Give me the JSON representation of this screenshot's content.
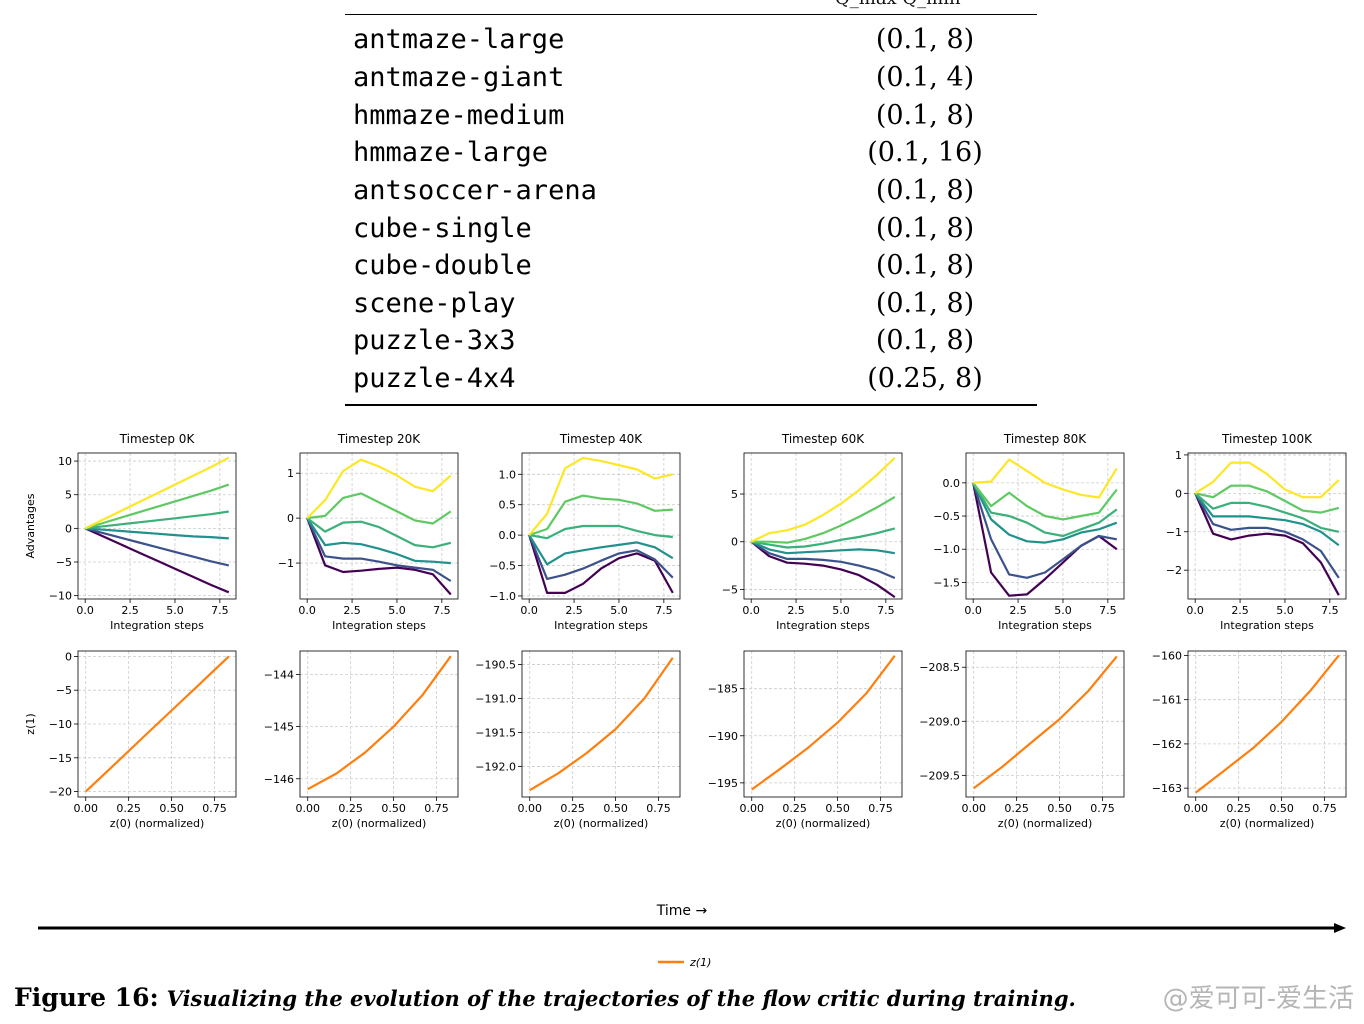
{
  "table": {
    "header_cut": "Q_max   Q_min",
    "rows": [
      {
        "env": "antmaze-large",
        "value": "(0.1, 8)"
      },
      {
        "env": "antmaze-giant",
        "value": "(0.1, 4)"
      },
      {
        "env": "hmmaze-medium",
        "value": "(0.1, 8)"
      },
      {
        "env": "hmmaze-large",
        "value": "(0.1, 16)"
      },
      {
        "env": "antsoccer-arena",
        "value": "(0.1, 8)"
      },
      {
        "env": "cube-single",
        "value": "(0.1, 8)"
      },
      {
        "env": "cube-double",
        "value": "(0.1, 8)"
      },
      {
        "env": "scene-play",
        "value": "(0.1, 8)"
      },
      {
        "env": "puzzle-3x3",
        "value": "(0.1, 8)"
      },
      {
        "env": "puzzle-4x4",
        "value": "(0.25, 8)"
      }
    ]
  },
  "colors": {
    "viridis": [
      "#440154",
      "#3b528b",
      "#21918c",
      "#5ec962",
      "#fde725"
    ],
    "z1": "#ff7f0e",
    "grid": "#cccccc"
  },
  "chart_data": [
    {
      "type": "line",
      "title": "Timestep 0K",
      "xlabel": "Integration steps",
      "ylabel": "Advantages",
      "xlim": [
        -0.4,
        8.4
      ],
      "ylim": [
        -10.5,
        11.2
      ],
      "xticks": [
        "0.0",
        "2.5",
        "5.0",
        "7.5"
      ],
      "xtick_values": [
        0,
        2.5,
        5,
        7.5
      ],
      "yticks": [
        "10",
        "5",
        "0",
        "−5",
        "−10"
      ],
      "ytick_values": [
        10,
        5,
        0,
        -5,
        -10
      ],
      "x": [
        0,
        1,
        2,
        3,
        4,
        5,
        6,
        7,
        8
      ],
      "series": [
        {
          "values": [
            0,
            -1.2,
            -2.4,
            -3.6,
            -4.8,
            -6.0,
            -7.2,
            -8.4,
            -9.5
          ]
        },
        {
          "values": [
            0,
            -0.7,
            -1.4,
            -2.1,
            -2.8,
            -3.5,
            -4.2,
            -4.9,
            -5.5
          ]
        },
        {
          "values": [
            0,
            -0.2,
            -0.4,
            -0.6,
            -0.8,
            -1.0,
            -1.2,
            -1.3,
            -1.5
          ]
        },
        {
          "values": [
            0,
            0.3,
            0.6,
            0.9,
            1.2,
            1.5,
            1.8,
            2.1,
            2.5
          ]
        },
        {
          "values": [
            0,
            0.8,
            1.6,
            2.4,
            3.2,
            4.0,
            4.8,
            5.6,
            6.5
          ]
        },
        {
          "values": [
            0,
            1.3,
            2.6,
            3.9,
            5.2,
            6.5,
            7.8,
            9.1,
            10.5
          ]
        }
      ]
    },
    {
      "type": "line",
      "title": "Timestep 20K",
      "xlabel": "Integration steps",
      "ylabel": "",
      "xlim": [
        -0.4,
        8.4
      ],
      "ylim": [
        -1.8,
        1.45
      ],
      "xticks": [
        "0.0",
        "2.5",
        "5.0",
        "7.5"
      ],
      "xtick_values": [
        0,
        2.5,
        5,
        7.5
      ],
      "yticks": [
        "1",
        "0",
        "−1"
      ],
      "ytick_values": [
        1,
        0,
        -1
      ],
      "x": [
        0,
        1,
        2,
        3,
        4,
        5,
        6,
        7,
        8
      ],
      "series": [
        {
          "values": [
            0,
            -1.05,
            -1.2,
            -1.17,
            -1.13,
            -1.1,
            -1.15,
            -1.25,
            -1.7
          ]
        },
        {
          "values": [
            0,
            -0.85,
            -0.9,
            -0.9,
            -0.97,
            -1.05,
            -1.1,
            -1.15,
            -1.4
          ]
        },
        {
          "values": [
            0,
            -0.6,
            -0.55,
            -0.58,
            -0.68,
            -0.8,
            -0.95,
            -0.97,
            -1.0
          ]
        },
        {
          "values": [
            0,
            -0.3,
            -0.1,
            -0.08,
            -0.2,
            -0.4,
            -0.6,
            -0.65,
            -0.55
          ]
        },
        {
          "values": [
            0,
            0.05,
            0.45,
            0.55,
            0.35,
            0.15,
            -0.05,
            -0.12,
            0.15
          ]
        },
        {
          "values": [
            0,
            0.4,
            1.05,
            1.3,
            1.15,
            0.95,
            0.7,
            0.6,
            0.95
          ]
        }
      ]
    },
    {
      "type": "line",
      "title": "Timestep 40K",
      "xlabel": "Integration steps",
      "ylabel": "",
      "xlim": [
        -0.4,
        8.4
      ],
      "ylim": [
        -1.05,
        1.35
      ],
      "xticks": [
        "0.0",
        "2.5",
        "5.0",
        "7.5"
      ],
      "xtick_values": [
        0,
        2.5,
        5,
        7.5
      ],
      "yticks": [
        "1.0",
        "0.5",
        "0.0",
        "−0.5",
        "−1.0"
      ],
      "ytick_values": [
        1.0,
        0.5,
        0.0,
        -0.5,
        -1.0
      ],
      "x": [
        0,
        1,
        2,
        3,
        4,
        5,
        6,
        7,
        8
      ],
      "series": [
        {
          "values": [
            0,
            -0.95,
            -0.95,
            -0.8,
            -0.55,
            -0.38,
            -0.3,
            -0.42,
            -0.95
          ]
        },
        {
          "values": [
            0,
            -0.72,
            -0.65,
            -0.55,
            -0.42,
            -0.3,
            -0.25,
            -0.4,
            -0.7
          ]
        },
        {
          "values": [
            0,
            -0.48,
            -0.3,
            -0.25,
            -0.2,
            -0.16,
            -0.12,
            -0.2,
            -0.38
          ]
        },
        {
          "values": [
            0,
            -0.05,
            0.1,
            0.15,
            0.15,
            0.15,
            0.07,
            0.0,
            -0.03
          ]
        },
        {
          "values": [
            0,
            0.1,
            0.55,
            0.65,
            0.6,
            0.58,
            0.52,
            0.4,
            0.42
          ]
        },
        {
          "values": [
            0,
            0.35,
            1.1,
            1.27,
            1.22,
            1.15,
            1.08,
            0.93,
            1.0
          ]
        }
      ]
    },
    {
      "type": "line",
      "title": "Timestep 60K",
      "xlabel": "Integration steps",
      "ylabel": "",
      "xlim": [
        -0.4,
        8.4
      ],
      "ylim": [
        -6.0,
        9.3
      ],
      "xticks": [
        "0.0",
        "2.5",
        "5.0",
        "7.5"
      ],
      "xtick_values": [
        0,
        2.5,
        5,
        7.5
      ],
      "yticks": [
        "5",
        "0",
        "−5"
      ],
      "ytick_values": [
        5,
        0,
        -5
      ],
      "x": [
        0,
        1,
        2,
        3,
        4,
        5,
        6,
        7,
        8
      ],
      "series": [
        {
          "values": [
            0,
            -1.5,
            -2.2,
            -2.3,
            -2.5,
            -2.9,
            -3.5,
            -4.5,
            -5.8
          ]
        },
        {
          "values": [
            0,
            -1.2,
            -1.8,
            -1.8,
            -1.9,
            -2.1,
            -2.5,
            -3.0,
            -3.8
          ]
        },
        {
          "values": [
            0,
            -0.8,
            -1.2,
            -1.1,
            -1.0,
            -0.9,
            -0.8,
            -0.9,
            -1.2
          ]
        },
        {
          "values": [
            0,
            -0.3,
            -0.6,
            -0.5,
            -0.2,
            0.2,
            0.5,
            0.9,
            1.4
          ]
        },
        {
          "values": [
            0,
            0.0,
            -0.1,
            0.3,
            0.9,
            1.7,
            2.6,
            3.6,
            4.7
          ]
        },
        {
          "values": [
            0,
            0.9,
            1.2,
            1.8,
            2.8,
            4.0,
            5.4,
            7.0,
            8.8
          ]
        }
      ]
    },
    {
      "type": "line",
      "title": "Timestep 80K",
      "xlabel": "Integration steps",
      "ylabel": "",
      "xlim": [
        -0.4,
        8.4
      ],
      "ylim": [
        -1.75,
        0.45
      ],
      "xticks": [
        "0.0",
        "2.5",
        "5.0",
        "7.5"
      ],
      "xtick_values": [
        0,
        2.5,
        5,
        7.5
      ],
      "yticks": [
        "0.0",
        "−0.5",
        "−1.0",
        "−1.5"
      ],
      "ytick_values": [
        0.0,
        -0.5,
        -1.0,
        -1.5
      ],
      "x": [
        0,
        1,
        2,
        3,
        4,
        5,
        6,
        7,
        8
      ],
      "series": [
        {
          "values": [
            0,
            -1.35,
            -1.7,
            -1.68,
            -1.45,
            -1.2,
            -0.95,
            -0.8,
            -1.0
          ]
        },
        {
          "values": [
            0,
            -0.85,
            -1.38,
            -1.43,
            -1.35,
            -1.15,
            -0.95,
            -0.8,
            -0.85
          ]
        },
        {
          "values": [
            0,
            -0.55,
            -0.78,
            -0.88,
            -0.9,
            -0.85,
            -0.75,
            -0.7,
            -0.6
          ]
        },
        {
          "values": [
            0,
            -0.45,
            -0.5,
            -0.6,
            -0.75,
            -0.8,
            -0.7,
            -0.6,
            -0.4
          ]
        },
        {
          "values": [
            0,
            -0.35,
            -0.15,
            -0.35,
            -0.5,
            -0.55,
            -0.5,
            -0.45,
            -0.1
          ]
        },
        {
          "values": [
            0,
            0.02,
            0.35,
            0.18,
            0.0,
            -0.1,
            -0.18,
            -0.22,
            0.22
          ]
        }
      ]
    },
    {
      "type": "line",
      "title": "Timestep 100K",
      "xlabel": "Integration steps",
      "ylabel": "",
      "xlim": [
        -0.4,
        8.4
      ],
      "ylim": [
        -2.75,
        1.05
      ],
      "xticks": [
        "0.0",
        "2.5",
        "5.0",
        "7.5"
      ],
      "xtick_values": [
        0,
        2.5,
        5,
        7.5
      ],
      "yticks": [
        "1",
        "0",
        "−1",
        "−2"
      ],
      "ytick_values": [
        1,
        0,
        -1,
        -2
      ],
      "x": [
        0,
        1,
        2,
        3,
        4,
        5,
        6,
        7,
        8
      ],
      "series": [
        {
          "values": [
            0,
            -1.05,
            -1.2,
            -1.1,
            -1.05,
            -1.1,
            -1.3,
            -1.8,
            -2.65
          ]
        },
        {
          "values": [
            0,
            -0.8,
            -0.95,
            -0.9,
            -0.9,
            -1.0,
            -1.2,
            -1.5,
            -2.2
          ]
        },
        {
          "values": [
            0,
            -0.6,
            -0.6,
            -0.6,
            -0.65,
            -0.7,
            -0.8,
            -1.0,
            -1.35
          ]
        },
        {
          "values": [
            0,
            -0.4,
            -0.25,
            -0.25,
            -0.35,
            -0.5,
            -0.65,
            -0.9,
            -1.0
          ]
        },
        {
          "values": [
            0,
            -0.1,
            0.2,
            0.2,
            0.05,
            -0.2,
            -0.45,
            -0.5,
            -0.38
          ]
        },
        {
          "values": [
            0,
            0.3,
            0.8,
            0.8,
            0.5,
            0.1,
            -0.1,
            -0.1,
            0.35
          ]
        }
      ]
    },
    {
      "type": "line",
      "title": "",
      "xlabel": "z(0) (normalized)",
      "ylabel": "z(1)",
      "xlim": [
        -0.045,
        0.875
      ],
      "ylim": [
        -20.8,
        0.8
      ],
      "xticks": [
        "0.00",
        "0.25",
        "0.50",
        "0.75"
      ],
      "xtick_values": [
        0,
        0.25,
        0.5,
        0.75
      ],
      "yticks": [
        "0",
        "−5",
        "−10",
        "−15",
        "−20"
      ],
      "ytick_values": [
        0,
        -5,
        -10,
        -15,
        -20
      ],
      "x": [
        0,
        0.167,
        0.333,
        0.5,
        0.667,
        0.833
      ],
      "series": [
        {
          "name": "z(1)",
          "values": [
            -20,
            -16,
            -12,
            -8,
            -4,
            0
          ]
        }
      ]
    },
    {
      "type": "line",
      "title": "",
      "xlabel": "z(0) (normalized)",
      "ylabel": "",
      "xlim": [
        -0.045,
        0.875
      ],
      "ylim": [
        -146.35,
        -143.55
      ],
      "xticks": [
        "0.00",
        "0.25",
        "0.50",
        "0.75"
      ],
      "xtick_values": [
        0,
        0.25,
        0.5,
        0.75
      ],
      "yticks": [
        "−144",
        "−145",
        "−146"
      ],
      "ytick_values": [
        -144,
        -145,
        -146
      ],
      "x": [
        0,
        0.167,
        0.333,
        0.5,
        0.667,
        0.833
      ],
      "series": [
        {
          "name": "z(1)",
          "values": [
            -146.2,
            -145.9,
            -145.5,
            -145.0,
            -144.4,
            -143.65
          ]
        }
      ]
    },
    {
      "type": "line",
      "title": "",
      "xlabel": "z(0) (normalized)",
      "ylabel": "",
      "xlim": [
        -0.045,
        0.875
      ],
      "ylim": [
        -192.45,
        -190.3
      ],
      "xticks": [
        "0.00",
        "0.25",
        "0.50",
        "0.75"
      ],
      "xtick_values": [
        0,
        0.25,
        0.5,
        0.75
      ],
      "yticks": [
        "−190.5",
        "−191.0",
        "−191.5",
        "−192.0"
      ],
      "ytick_values": [
        -190.5,
        -191.0,
        -191.5,
        -192.0
      ],
      "x": [
        0,
        0.167,
        0.333,
        0.5,
        0.667,
        0.833
      ],
      "series": [
        {
          "name": "z(1)",
          "values": [
            -192.35,
            -192.1,
            -191.8,
            -191.45,
            -191.0,
            -190.4
          ]
        }
      ]
    },
    {
      "type": "line",
      "title": "",
      "xlabel": "z(0) (normalized)",
      "ylabel": "",
      "xlim": [
        -0.045,
        0.875
      ],
      "ylim": [
        -196.5,
        -181.0
      ],
      "xticks": [
        "0.00",
        "0.25",
        "0.50",
        "0.75"
      ],
      "xtick_values": [
        0,
        0.25,
        0.5,
        0.75
      ],
      "yticks": [
        "−185",
        "−190",
        "−195"
      ],
      "ytick_values": [
        -185,
        -190,
        -195
      ],
      "x": [
        0,
        0.167,
        0.333,
        0.5,
        0.667,
        0.833
      ],
      "series": [
        {
          "name": "z(1)",
          "values": [
            -195.7,
            -193.5,
            -191.2,
            -188.6,
            -185.5,
            -181.5
          ]
        }
      ]
    },
    {
      "type": "line",
      "title": "",
      "xlabel": "z(0) (normalized)",
      "ylabel": "",
      "xlim": [
        -0.045,
        0.875
      ],
      "ylim": [
        -209.7,
        -208.35
      ],
      "xticks": [
        "0.00",
        "0.25",
        "0.50",
        "0.75"
      ],
      "xtick_values": [
        0,
        0.25,
        0.5,
        0.75
      ],
      "yticks": [
        "−208.5",
        "−209.0",
        "−209.5"
      ],
      "ytick_values": [
        -208.5,
        -209.0,
        -209.5
      ],
      "x": [
        0,
        0.167,
        0.333,
        0.5,
        0.667,
        0.833
      ],
      "series": [
        {
          "name": "z(1)",
          "values": [
            -209.62,
            -209.42,
            -209.2,
            -208.98,
            -208.72,
            -208.4
          ]
        }
      ]
    },
    {
      "type": "line",
      "title": "",
      "xlabel": "z(0) (normalized)",
      "ylabel": "",
      "xlim": [
        -0.045,
        0.875
      ],
      "ylim": [
        -163.2,
        -159.9
      ],
      "xticks": [
        "0.00",
        "0.25",
        "0.50",
        "0.75"
      ],
      "xtick_values": [
        0,
        0.25,
        0.5,
        0.75
      ],
      "yticks": [
        "−160",
        "−161",
        "−162",
        "−163"
      ],
      "ytick_values": [
        -160,
        -161,
        -162,
        -163
      ],
      "x": [
        0,
        0.167,
        0.333,
        0.5,
        0.667,
        0.833
      ],
      "series": [
        {
          "name": "z(1)",
          "values": [
            -163.1,
            -162.6,
            -162.1,
            -161.5,
            -160.8,
            -160.0
          ]
        }
      ]
    }
  ],
  "figure": {
    "time_label": "Time →",
    "legend_label": "z(1)",
    "caption_label": "Figure 16:",
    "caption_text": "Visualizing the evolution of the trajectories of the flow critic during training."
  },
  "watermark": "@爱可可-爱生活"
}
